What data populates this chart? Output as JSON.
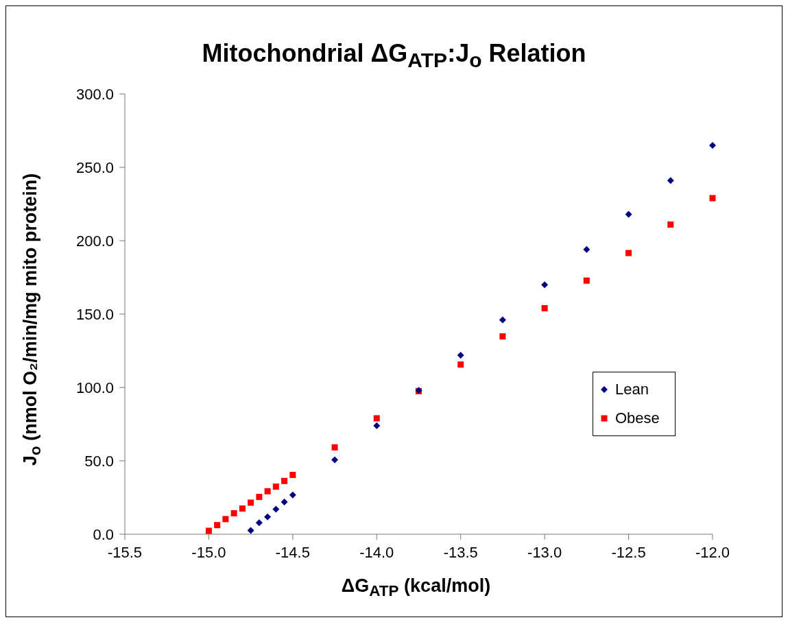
{
  "chart_data": {
    "type": "scatter",
    "title": "Mitochondrial ΔG$_{ATP}$:J$_{o}$ Relation",
    "xlabel": "ΔG$_{ATP}$ (kcal/mol)",
    "ylabel": "J$_{o}$ (nmol O₂/min/mg mito protein)",
    "xlim": [
      -15.5,
      -12.0
    ],
    "xticks": [
      {
        "value": -15.5,
        "label": "-15.5"
      },
      {
        "value": -15,
        "label": "-15.0"
      },
      {
        "value": -14.5,
        "label": "-14.5"
      },
      {
        "value": -14,
        "label": "-14.0"
      },
      {
        "value": -13.5,
        "label": "-13.5"
      },
      {
        "value": -13,
        "label": "-13.0"
      },
      {
        "value": -12.5,
        "label": "-12.5"
      },
      {
        "value": -12,
        "label": "-12.0"
      }
    ],
    "ylim": [
      0,
      300
    ],
    "yticks": [
      {
        "value": 0,
        "label": "0.0"
      },
      {
        "value": 50,
        "label": "50.0"
      },
      {
        "value": 100,
        "label": "100.0"
      },
      {
        "value": 150,
        "label": "150.0"
      },
      {
        "value": 200,
        "label": "200.0"
      },
      {
        "value": 250,
        "label": "250.0"
      },
      {
        "value": 300,
        "label": "300.0"
      }
    ],
    "grid": false,
    "legend": "right",
    "series": [
      {
        "name": "Lean",
        "color": "#000080",
        "marker": "diamond",
        "x": [
          -14.75,
          -14.7,
          -14.65,
          -14.6,
          -14.55,
          -14.5,
          -14.25,
          -14.0,
          -13.75,
          -13.5,
          -13.25,
          -13.0,
          -12.75,
          -12.5,
          -12.25,
          -12.0
        ],
        "values": [
          2.6,
          7.8,
          11.8,
          17.0,
          22.0,
          26.8,
          50.7,
          74,
          98,
          122,
          146,
          170,
          194,
          218,
          241,
          265
        ]
      },
      {
        "name": "Obese",
        "color": "#ff0000",
        "marker": "square",
        "x": [
          -15.0,
          -14.95,
          -14.9,
          -14.85,
          -14.8,
          -14.75,
          -14.7,
          -14.65,
          -14.6,
          -14.55,
          -14.5,
          -14.25,
          -14.0,
          -13.75,
          -13.5,
          -13.25,
          -13.0,
          -12.75,
          -12.5,
          -12.25,
          -12.0
        ],
        "values": [
          2.3,
          6.2,
          10.3,
          14.3,
          17.5,
          21.5,
          25.4,
          29.3,
          32.4,
          36.3,
          40.4,
          59.2,
          79,
          97.5,
          115.6,
          134.8,
          154,
          172.8,
          191.6,
          211,
          229
        ]
      }
    ]
  }
}
